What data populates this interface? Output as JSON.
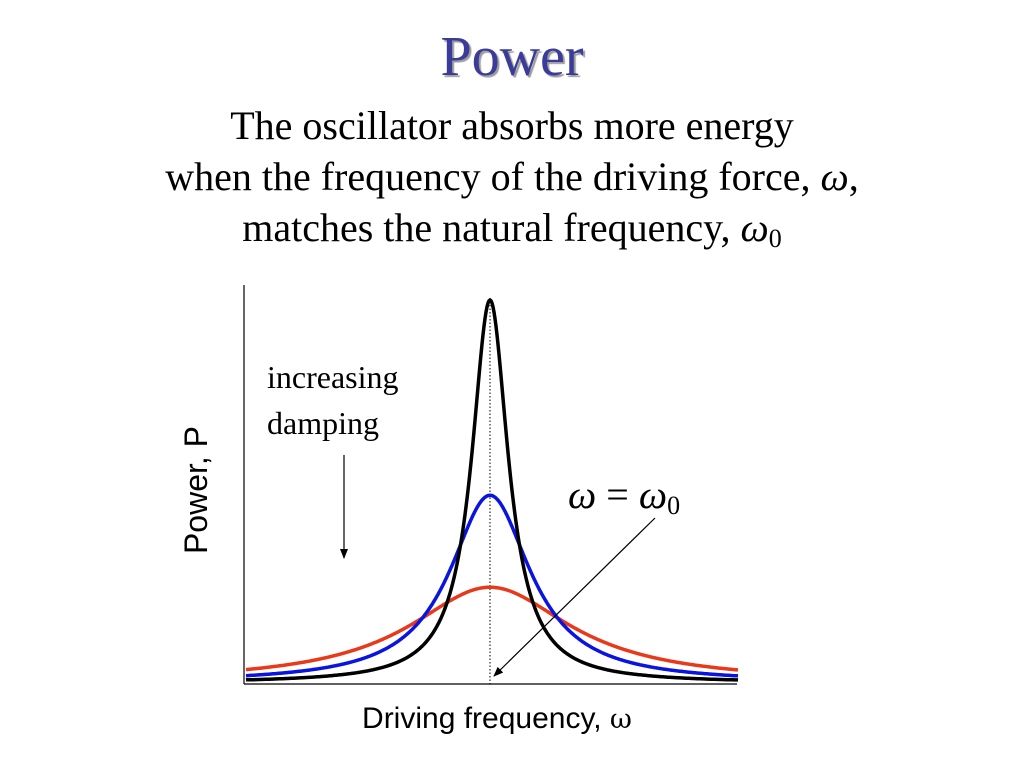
{
  "slide": {
    "title": "Power",
    "subtitle": {
      "line1": "The oscillator absorbs more energy",
      "line2_text": "when the frequency of the driving force, ",
      "line2_symbol": "ω",
      "line2_end": ",",
      "line3_text": "matches the natural frequency, ",
      "line3_symbol": "ω",
      "line3_subscript": "0"
    }
  },
  "graph": {
    "y_axis_label": "Power, P",
    "x_axis_label": "Driving frequency, ",
    "x_axis_symbol": "ω",
    "damping_label_line1": "increasing",
    "damping_label_line2": "damping",
    "resonance_label_lhs": "ω",
    "resonance_label_eq": " = ",
    "resonance_label_rhs": "ω",
    "resonance_label_sub": "0",
    "curves": [
      {
        "name": "low damping",
        "color": "#000000",
        "peak": 1.0,
        "width": 0.045
      },
      {
        "name": "medium damping",
        "color": "#0a14e0",
        "peak": 0.49,
        "width": 0.1
      },
      {
        "name": "high damping",
        "color": "#e8391a",
        "peak": 0.25,
        "width": 0.2
      }
    ]
  }
}
